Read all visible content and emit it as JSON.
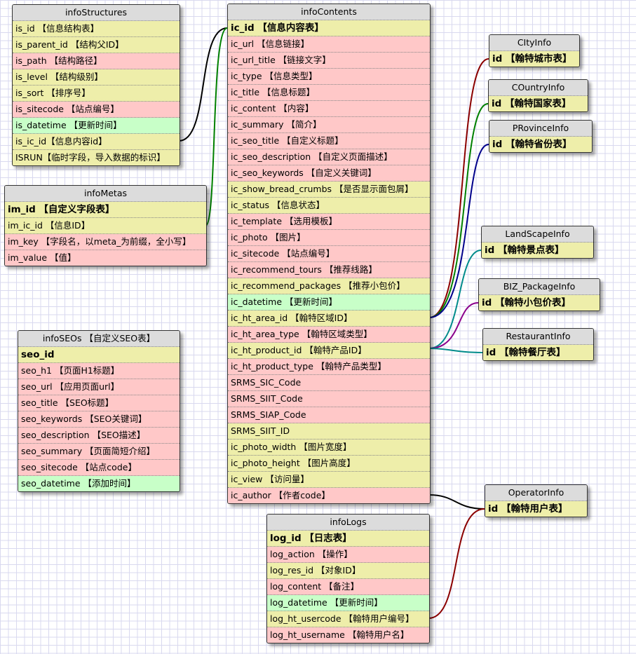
{
  "colors": {
    "y": "#eeeeaa",
    "p": "#ffc8c8",
    "g": "#c8ffc8",
    "header": "#dcdcdc"
  },
  "tables": [
    {
      "id": "infoStructures",
      "title": "infoStructures",
      "rows": [
        {
          "t": "is_id 【信息结构表】",
          "c": "y"
        },
        {
          "t": "is_parent_id 【结构父ID】",
          "c": "y"
        },
        {
          "t": "is_path 【结构路径】",
          "c": "p"
        },
        {
          "t": "is_level 【结构级别】",
          "c": "y"
        },
        {
          "t": "is_sort 【排序号】",
          "c": "y"
        },
        {
          "t": "is_sitecode 【站点编号】",
          "c": "p"
        },
        {
          "t": "is_datetime 【更新时间】",
          "c": "g"
        },
        {
          "t": "is_ic_id【信息内容id】",
          "c": "y"
        },
        {
          "t": "ISRUN【临时字段，导入数据的标识】",
          "c": "y"
        }
      ]
    },
    {
      "id": "infoMetas",
      "title": "infoMetas",
      "rows": [
        {
          "t": "im_id 【自定义字段表】",
          "c": "y",
          "pk": true
        },
        {
          "t": "im_ic_id 【信息ID】",
          "c": "y"
        },
        {
          "t": "im_key 【字段名，以meta_为前缀，全小写】",
          "c": "p"
        },
        {
          "t": "im_value 【值】",
          "c": "p"
        }
      ]
    },
    {
      "id": "infoSEOs",
      "title": "infoSEOs 【自定义SEO表】",
      "rows": [
        {
          "t": "seo_id",
          "c": "y",
          "pk": true
        },
        {
          "t": "seo_h1 【页面H1标题】",
          "c": "p"
        },
        {
          "t": "seo_url 【应用页面url】",
          "c": "p"
        },
        {
          "t": "seo_title 【SEO标题】",
          "c": "p"
        },
        {
          "t": "seo_keywords 【SEO关键词】",
          "c": "p"
        },
        {
          "t": "seo_description 【SEO描述】",
          "c": "p"
        },
        {
          "t": "seo_summary 【页面简短介绍】",
          "c": "p"
        },
        {
          "t": "seo_sitecode 【站点code】",
          "c": "p"
        },
        {
          "t": "seo_datetime 【添加时间】",
          "c": "g"
        }
      ]
    },
    {
      "id": "infoContents",
      "title": "infoContents",
      "rows": [
        {
          "t": "ic_id 【信息内容表】",
          "c": "y",
          "pk": true
        },
        {
          "t": "ic_url 【信息链接】",
          "c": "p"
        },
        {
          "t": "ic_url_title 【链接文字】",
          "c": "p"
        },
        {
          "t": "ic_type 【信息类型】",
          "c": "p"
        },
        {
          "t": "ic_title 【信息标题】",
          "c": "p"
        },
        {
          "t": "ic_content 【内容】",
          "c": "p"
        },
        {
          "t": "ic_summary 【简介】",
          "c": "p"
        },
        {
          "t": "ic_seo_title 【自定义标题】",
          "c": "p"
        },
        {
          "t": "ic_seo_description 【自定义页面描述】",
          "c": "p"
        },
        {
          "t": "ic_seo_keywords 【自定义关键词】",
          "c": "p"
        },
        {
          "t": "ic_show_bread_crumbs 【是否显示面包屑】",
          "c": "y"
        },
        {
          "t": "ic_status 【信息状态】",
          "c": "y"
        },
        {
          "t": "ic_template 【选用模板】",
          "c": "p"
        },
        {
          "t": "ic_photo 【图片】",
          "c": "p"
        },
        {
          "t": "ic_sitecode 【站点编号】",
          "c": "p"
        },
        {
          "t": "ic_recommend_tours 【推荐线路】",
          "c": "p"
        },
        {
          "t": "ic_recommend_packages 【推荐小包价】",
          "c": "y"
        },
        {
          "t": "ic_datetime 【更新时间】",
          "c": "g"
        },
        {
          "t": "ic_ht_area_id 【翰特区域ID】",
          "c": "y"
        },
        {
          "t": "ic_ht_area_type 【翰特区域类型】",
          "c": "p"
        },
        {
          "t": "ic_ht_product_id 【翰特产品ID】",
          "c": "y"
        },
        {
          "t": "ic_ht_product_type 【翰特产品类型】",
          "c": "p"
        },
        {
          "t": "SRMS_SIC_Code",
          "c": "p"
        },
        {
          "t": "SRMS_SIIT_Code",
          "c": "p"
        },
        {
          "t": "SRMS_SIAP_Code",
          "c": "p"
        },
        {
          "t": "SRMS_SIIT_ID",
          "c": "y"
        },
        {
          "t": "ic_photo_width 【图片宽度】",
          "c": "y"
        },
        {
          "t": "ic_photo_height 【图片高度】",
          "c": "y"
        },
        {
          "t": "ic_view 【访问量】",
          "c": "y"
        },
        {
          "t": "ic_author 【作者code】",
          "c": "p"
        }
      ]
    },
    {
      "id": "infoLogs",
      "title": "infoLogs",
      "rows": [
        {
          "t": "log_id 【日志表】",
          "c": "y",
          "pk": true
        },
        {
          "t": "log_action 【操作】",
          "c": "p"
        },
        {
          "t": "log_res_id 【对象ID】",
          "c": "y"
        },
        {
          "t": "log_content 【备注】",
          "c": "p"
        },
        {
          "t": "log_datetime 【更新时间】",
          "c": "g"
        },
        {
          "t": "log_ht_usercode 【翰特用户编号】",
          "c": "y"
        },
        {
          "t": "log_ht_username 【翰特用户名】",
          "c": "p"
        }
      ]
    },
    {
      "id": "CItyInfo",
      "title": "CItyInfo",
      "rows": [
        {
          "t": "id 【翰特城市表】",
          "c": "y",
          "pk": true
        }
      ]
    },
    {
      "id": "COuntryInfo",
      "title": "COuntryInfo",
      "rows": [
        {
          "t": "id 【翰特国家表】",
          "c": "y",
          "pk": true
        }
      ]
    },
    {
      "id": "PRovinceInfo",
      "title": "PRovinceInfo",
      "rows": [
        {
          "t": "id 【翰特省份表】",
          "c": "y",
          "pk": true
        }
      ]
    },
    {
      "id": "LandScapeInfo",
      "title": "LandScapeInfo",
      "rows": [
        {
          "t": "id 【翰特景点表】",
          "c": "y",
          "pk": true
        }
      ]
    },
    {
      "id": "BIZ_PackageInfo",
      "title": "BIZ_PackageInfo",
      "rows": [
        {
          "t": "id 【翰特小包价表】",
          "c": "y",
          "pk": true
        }
      ]
    },
    {
      "id": "RestaurantInfo",
      "title": "RestaurantInfo",
      "rows": [
        {
          "t": "id 【翰特餐厅表】",
          "c": "y",
          "pk": true
        }
      ]
    },
    {
      "id": "OperatorInfo",
      "title": "OperatorInfo",
      "rows": [
        {
          "t": "id 【翰特用户表】",
          "c": "y",
          "pk": true
        }
      ]
    }
  ],
  "relations": [
    {
      "from": "infoStructures.is_ic_id",
      "to": "infoContents.ic_id",
      "color": "#000000"
    },
    {
      "from": "infoMetas.im_ic_id",
      "to": "infoContents.ic_id",
      "color": "#008000"
    },
    {
      "from": "infoContents.ic_ht_area_id",
      "to": "CItyInfo.id",
      "color": "#8b0000"
    },
    {
      "from": "infoContents.ic_ht_area_id",
      "to": "COuntryInfo.id",
      "color": "#008000"
    },
    {
      "from": "infoContents.ic_ht_area_id",
      "to": "PRovinceInfo.id",
      "color": "#00008b"
    },
    {
      "from": "infoContents.ic_ht_product_id",
      "to": "LandScapeInfo.id",
      "color": "#008b8b"
    },
    {
      "from": "infoContents.ic_ht_product_id",
      "to": "BIZ_PackageInfo.id",
      "color": "#8b008b"
    },
    {
      "from": "infoContents.ic_ht_product_id",
      "to": "RestaurantInfo.id",
      "color": "#008b8b"
    },
    {
      "from": "infoContents.ic_author",
      "to": "OperatorInfo.id",
      "color": "#000000"
    },
    {
      "from": "infoLogs.log_ht_usercode",
      "to": "OperatorInfo.id",
      "color": "#8b0000"
    }
  ]
}
